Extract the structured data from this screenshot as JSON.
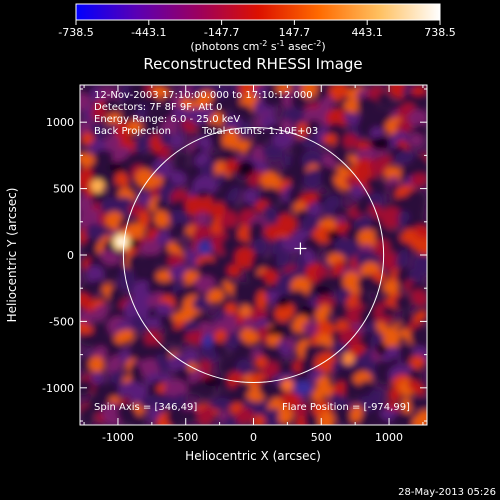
{
  "colorbar": {
    "ticks": [
      "-738.5",
      "-443.1",
      "-147.7",
      "147.7",
      "443.1",
      "738.5"
    ],
    "unit_prefix": "(photons cm",
    "unit_exp1": "-2",
    "unit_mid": " s",
    "unit_exp2": "-1",
    "unit_mid2": " asec",
    "unit_exp3": "-2",
    "unit_suffix": ")",
    "stops": [
      "#0000ff",
      "#5a00b4",
      "#9a0060",
      "#dc1000",
      "#ff6a00",
      "#ffc060",
      "#ffffff"
    ]
  },
  "chart_data": {
    "type": "heatmap",
    "title": "Reconstructed RHESSI Image",
    "xlabel": "Heliocentric X (arcsec)",
    "ylabel": "Heliocentric Y (arcsec)",
    "xlim": [
      -1280,
      1280
    ],
    "ylim": [
      -1280,
      1280
    ],
    "xticks": [
      -1000,
      -500,
      0,
      500,
      1000
    ],
    "yticks": [
      -1000,
      -500,
      0,
      500,
      1000
    ],
    "solar_limb_radius": 960,
    "cross_position": [
      346,
      49
    ],
    "bright_source": [
      -974,
      99
    ],
    "annotations": {
      "time_range": "12-Nov-2003 17:10:00.000 to 17:10:12.000",
      "detectors": "Detectors: 7F 8F 9F, Att 0",
      "energy": "Energy Range: 6.0 - 25.0 keV",
      "method": "Back Projection",
      "counts": "Total counts: 1.10E+03",
      "spin_axis": "Spin Axis = [346,49]",
      "flare_position": "Flare Position = [-974,99]"
    }
  },
  "footer": {
    "timestamp": "28-May-2013 05:26"
  }
}
